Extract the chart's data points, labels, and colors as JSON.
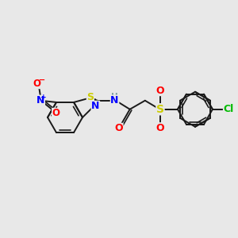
{
  "background_color": "#e8e8e8",
  "bond_color": "#1a1a1a",
  "atom_colors": {
    "N": "#0000ff",
    "O": "#ff0000",
    "S": "#cccc00",
    "Cl": "#00bb00",
    "H": "#7fa0a0",
    "C": "#1a1a1a"
  },
  "figsize": [
    3.0,
    3.0
  ],
  "dpi": 100
}
